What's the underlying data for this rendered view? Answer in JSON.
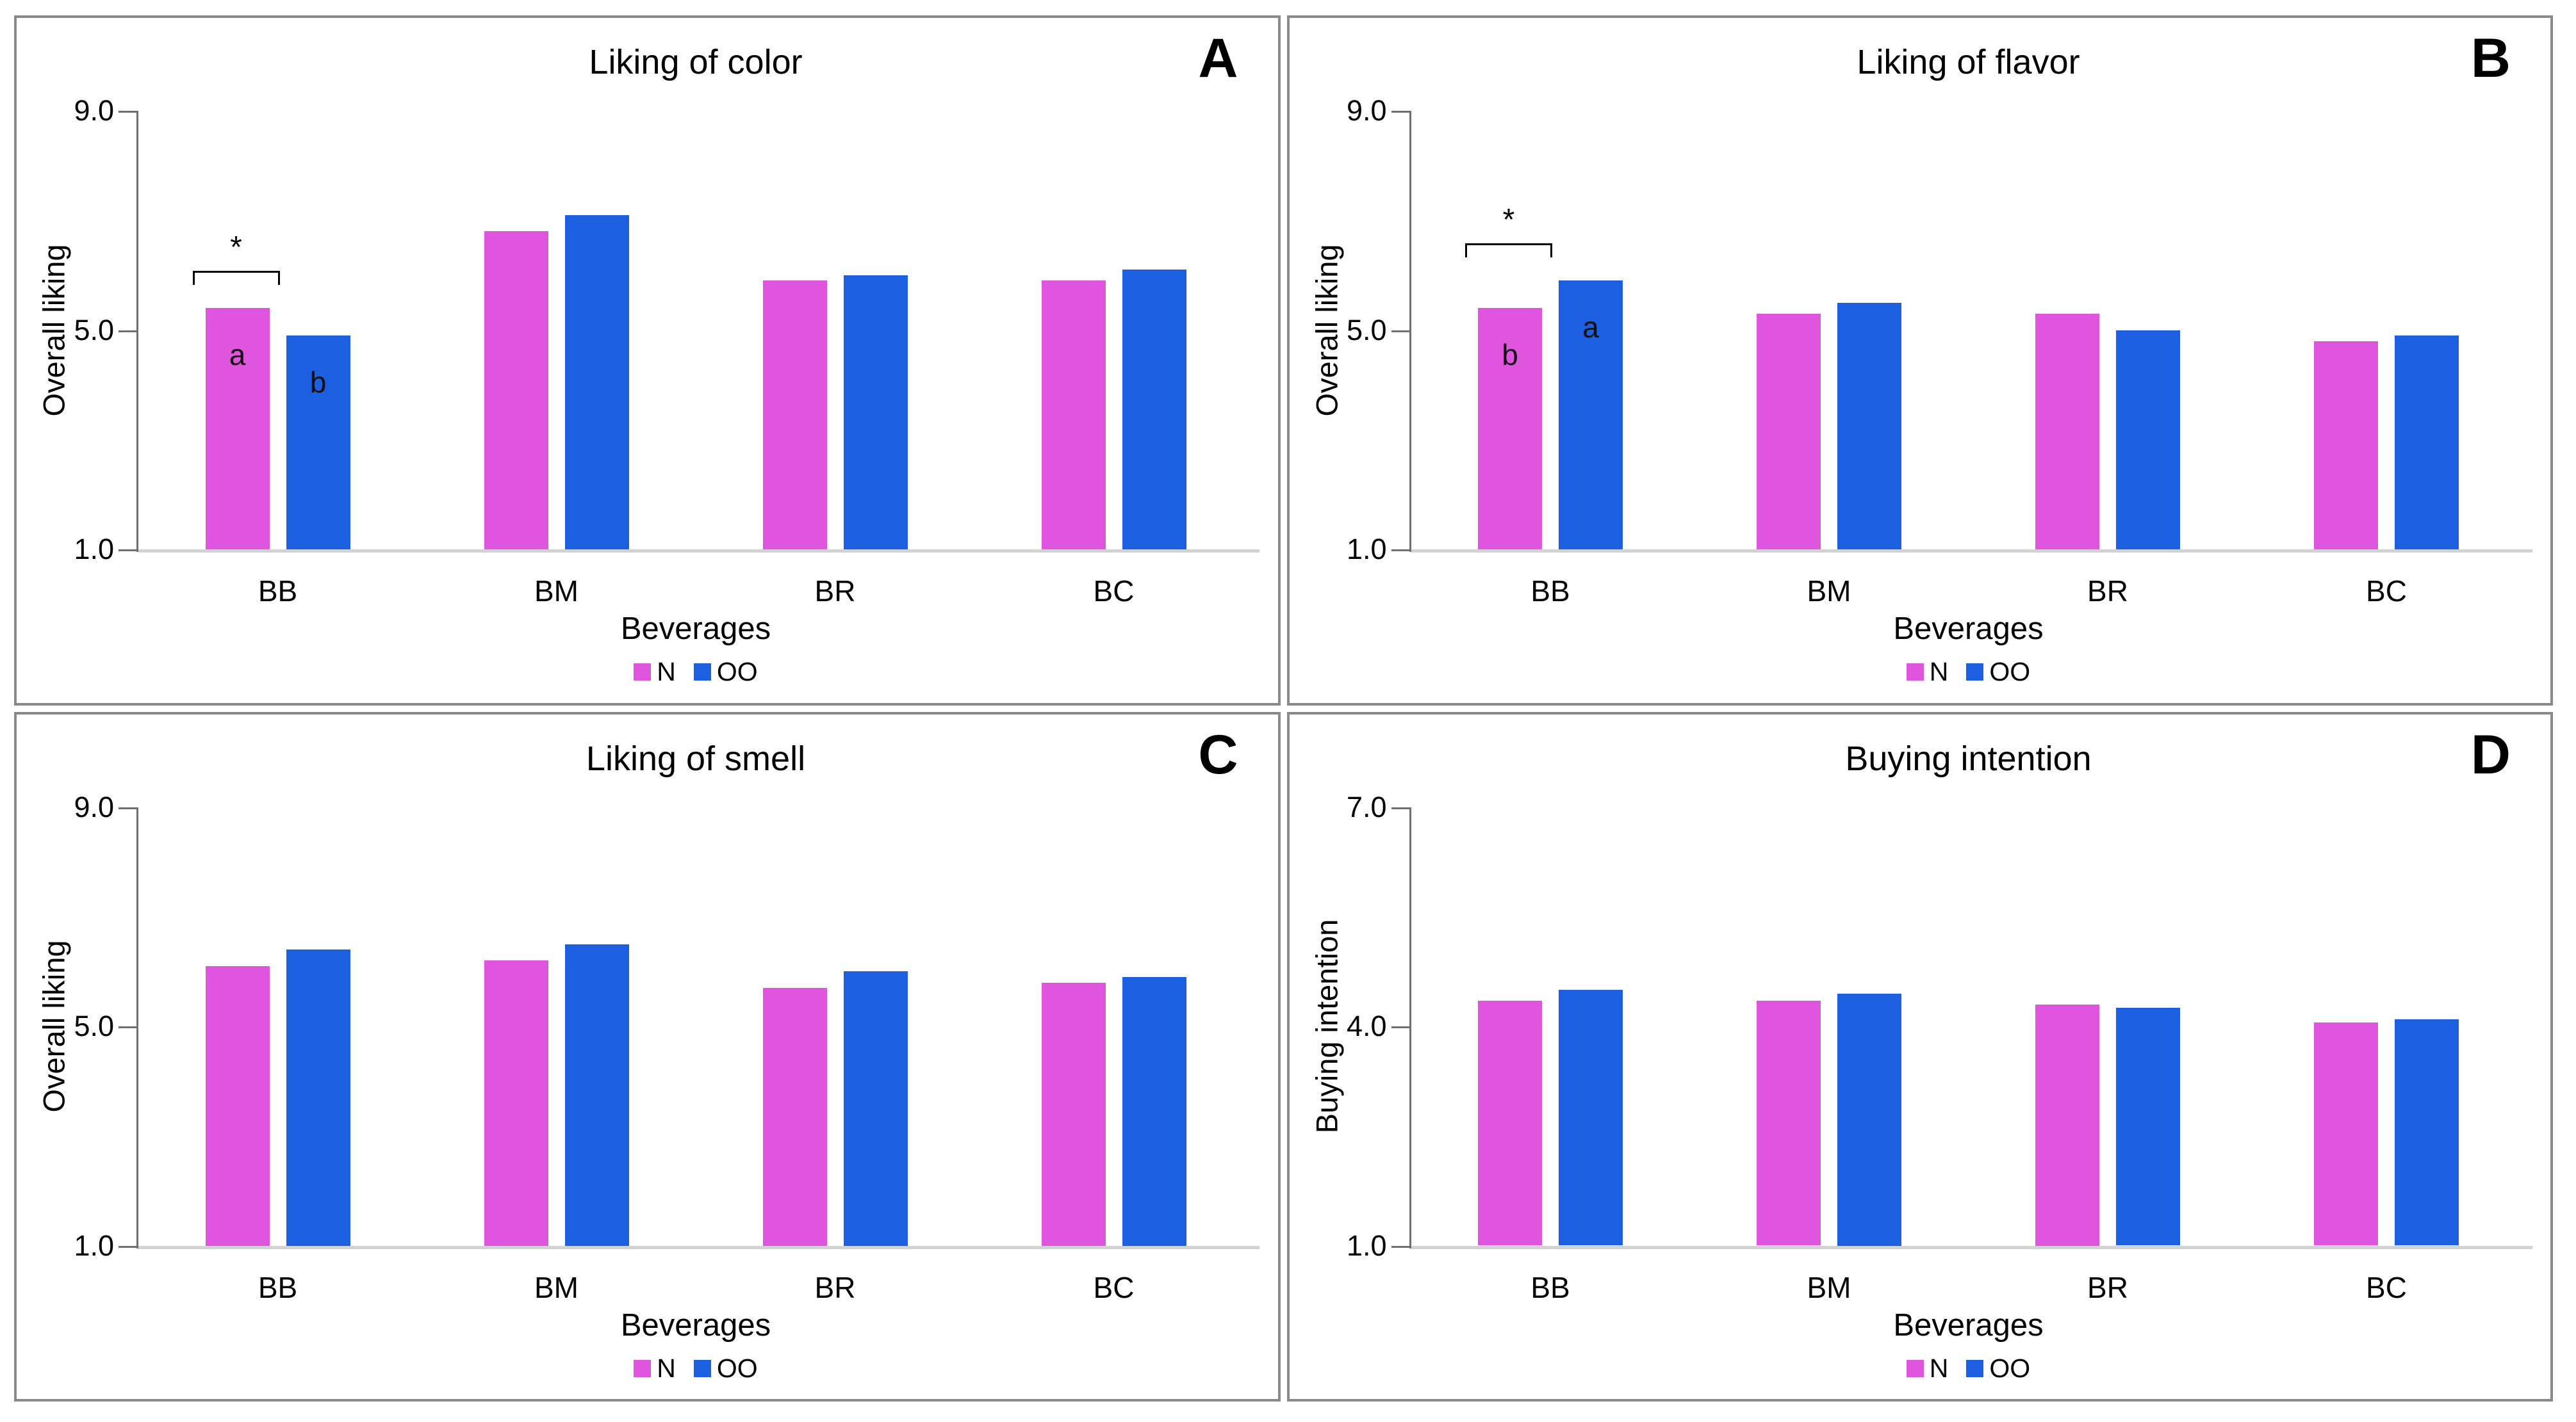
{
  "figure": {
    "legend": {
      "position": "bottom",
      "items": [
        {
          "label": "N",
          "color": "#DF55DE"
        },
        {
          "label": "OO",
          "color": "#1C5FE0"
        }
      ]
    },
    "colors": {
      "series_n": "#DF55DE",
      "series_oo": "#1C5FE0",
      "axis_line": "#6f6f6f",
      "x_baseline": "#d2d2d2",
      "panel_border": "#8a8a8a"
    }
  },
  "chart_data": [
    {
      "type": "bar",
      "panel_letter": "A",
      "title": "Liking of color",
      "xlabel": "Beverages",
      "ylabel": "Overall liking",
      "categories": [
        "BB",
        "BM",
        "BR",
        "BC"
      ],
      "yticks": [
        "9.0",
        "5.0",
        "1.0"
      ],
      "ylim": [
        1.0,
        9.0
      ],
      "grid": false,
      "legend_position": "bottom",
      "series": [
        {
          "name": "N",
          "color": "#DF55DE",
          "values": [
            5.4,
            6.8,
            5.9,
            5.9
          ]
        },
        {
          "name": "OO",
          "color": "#1C5FE0",
          "values": [
            4.9,
            7.1,
            6.0,
            6.1
          ]
        }
      ],
      "significance": {
        "category": "BB",
        "symbol": "*",
        "letters": [
          {
            "series": "N",
            "label": "a"
          },
          {
            "series": "OO",
            "label": "b"
          }
        ]
      }
    },
    {
      "type": "bar",
      "panel_letter": "B",
      "title": "Liking of flavor",
      "xlabel": "Beverages",
      "ylabel": "Overall liking",
      "categories": [
        "BB",
        "BM",
        "BR",
        "BC"
      ],
      "yticks": [
        "9.0",
        "5.0",
        "1.0"
      ],
      "ylim": [
        1.0,
        9.0
      ],
      "grid": false,
      "legend_position": "bottom",
      "series": [
        {
          "name": "N",
          "color": "#DF55DE",
          "values": [
            5.4,
            5.3,
            5.3,
            4.8
          ]
        },
        {
          "name": "OO",
          "color": "#1C5FE0",
          "values": [
            5.9,
            5.5,
            5.0,
            4.9
          ]
        }
      ],
      "significance": {
        "category": "BB",
        "symbol": "*",
        "letters": [
          {
            "series": "N",
            "label": "b"
          },
          {
            "series": "OO",
            "label": "a"
          }
        ]
      }
    },
    {
      "type": "bar",
      "panel_letter": "C",
      "title": "Liking of smell",
      "xlabel": "Beverages",
      "ylabel": "Overall liking",
      "categories": [
        "BB",
        "BM",
        "BR",
        "BC"
      ],
      "yticks": [
        "9.0",
        "5.0",
        "1.0"
      ],
      "ylim": [
        1.0,
        9.0
      ],
      "grid": false,
      "legend_position": "bottom",
      "series": [
        {
          "name": "N",
          "color": "#DF55DE",
          "values": [
            6.1,
            6.2,
            5.7,
            5.8
          ]
        },
        {
          "name": "OO",
          "color": "#1C5FE0",
          "values": [
            6.4,
            6.5,
            6.0,
            5.9
          ]
        }
      ],
      "significance": null
    },
    {
      "type": "bar",
      "panel_letter": "D",
      "title": "Buying intention",
      "xlabel": "Beverages",
      "ylabel": "Buying intention",
      "categories": [
        "BB",
        "BM",
        "BR",
        "BC"
      ],
      "yticks": [
        "7.0",
        "4.0",
        "1.0"
      ],
      "ylim": [
        1.0,
        7.0
      ],
      "grid": false,
      "legend_position": "bottom",
      "series": [
        {
          "name": "N",
          "color": "#DF55DE",
          "values": [
            4.35,
            4.35,
            4.3,
            4.05
          ]
        },
        {
          "name": "OO",
          "color": "#1C5FE0",
          "values": [
            4.5,
            4.45,
            4.25,
            4.1
          ]
        }
      ],
      "significance": null
    }
  ]
}
